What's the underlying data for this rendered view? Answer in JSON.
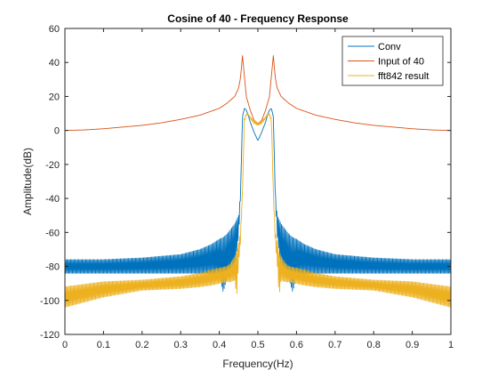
{
  "chart_data": {
    "type": "line",
    "title": "Cosine of 40 - Frequency Response",
    "xlabel": "Frequency(Hz)",
    "ylabel": "Amplitude(dB)",
    "xlim": [
      0,
      1
    ],
    "ylim": [
      -120,
      60
    ],
    "xticks": [
      "0",
      "0.1",
      "0.2",
      "0.3",
      "0.4",
      "0.5",
      "0.6",
      "0.7",
      "0.8",
      "0.9",
      "1"
    ],
    "yticks": [
      "60",
      "40",
      "20",
      "0",
      "-20",
      "-40",
      "-60",
      "-80",
      "-100",
      "-120"
    ],
    "grid": false,
    "legend_position": "top-right",
    "series": [
      {
        "name": "Conv",
        "color": "#0072BD",
        "oscillating": true,
        "x": [
          0,
          0.1,
          0.2,
          0.3,
          0.35,
          0.38,
          0.4,
          0.41,
          0.42,
          0.43,
          0.44,
          0.45,
          0.455,
          0.46,
          0.465,
          0.47,
          0.475,
          0.48,
          0.49,
          0.5,
          0.51,
          0.52,
          0.525,
          0.53,
          0.535,
          0.54,
          0.545,
          0.55,
          0.56,
          0.57,
          0.58,
          0.59,
          0.6,
          0.62,
          0.65,
          0.7,
          0.8,
          0.9,
          1
        ],
        "upper": [
          -76,
          -76,
          -75,
          -73,
          -70,
          -67,
          -64,
          -63,
          -61,
          -58,
          -55,
          -50,
          -37,
          8,
          13,
          12,
          9,
          5,
          -1,
          -6,
          -1,
          5,
          9,
          12,
          13,
          8,
          -37,
          -50,
          -55,
          -58,
          -61,
          -63,
          -64,
          -67,
          -70,
          -73,
          -75,
          -76,
          -76
        ],
        "lower": [
          -84,
          -84,
          -84,
          -84,
          -84,
          -84,
          -86,
          -95,
          -87,
          -84,
          -82,
          -62,
          -39,
          8,
          13,
          12,
          9,
          5,
          -1,
          -6,
          -1,
          5,
          9,
          12,
          13,
          8,
          -39,
          -62,
          -82,
          -84,
          -87,
          -95,
          -86,
          -84,
          -84,
          -84,
          -84,
          -84,
          -84
        ]
      },
      {
        "name": "Input of 40",
        "color": "#D95319",
        "oscillating": false,
        "x": [
          0,
          0.05,
          0.1,
          0.15,
          0.2,
          0.25,
          0.3,
          0.35,
          0.4,
          0.42,
          0.44,
          0.45,
          0.455,
          0.46,
          0.465,
          0.47,
          0.48,
          0.49,
          0.5,
          0.51,
          0.52,
          0.53,
          0.535,
          0.54,
          0.545,
          0.55,
          0.56,
          0.58,
          0.6,
          0.65,
          0.7,
          0.75,
          0.8,
          0.85,
          0.9,
          0.95,
          1
        ],
        "upper": [
          0,
          0.3,
          1,
          2,
          3,
          4.5,
          6.5,
          9,
          13,
          16,
          20,
          25,
          31,
          44,
          32,
          20,
          12,
          6,
          4,
          6,
          12,
          20,
          32,
          44,
          31,
          25,
          20,
          16,
          13,
          9,
          6.5,
          4.5,
          3,
          2,
          1,
          0.3,
          0
        ]
      },
      {
        "name": "fft842 result",
        "color": "#EDB120",
        "oscillating": true,
        "x": [
          0,
          0.1,
          0.2,
          0.3,
          0.35,
          0.38,
          0.4,
          0.42,
          0.43,
          0.44,
          0.445,
          0.45,
          0.455,
          0.46,
          0.465,
          0.47,
          0.475,
          0.48,
          0.49,
          0.5,
          0.51,
          0.52,
          0.525,
          0.53,
          0.535,
          0.54,
          0.545,
          0.55,
          0.555,
          0.56,
          0.57,
          0.58,
          0.6,
          0.62,
          0.65,
          0.7,
          0.8,
          0.9,
          1
        ],
        "upper": [
          -92,
          -89,
          -88,
          -86,
          -84,
          -82,
          -81,
          -80,
          -78,
          -74,
          -72,
          -66,
          -60,
          -35,
          7,
          10,
          10,
          8,
          6,
          4,
          6,
          8,
          10,
          10,
          7,
          -35,
          -60,
          -66,
          -72,
          -74,
          -78,
          -80,
          -81,
          -82,
          -84,
          -86,
          -88,
          -89,
          -92
        ],
        "lower": [
          -104,
          -98,
          -94,
          -93,
          -92,
          -91,
          -90,
          -89,
          -89,
          -88,
          -98,
          -78,
          -66,
          -38,
          5,
          9,
          9,
          7,
          4,
          3,
          4,
          7,
          9,
          9,
          5,
          -38,
          -66,
          -78,
          -98,
          -88,
          -89,
          -89,
          -90,
          -91,
          -92,
          -93,
          -94,
          -98,
          -104
        ]
      }
    ]
  }
}
